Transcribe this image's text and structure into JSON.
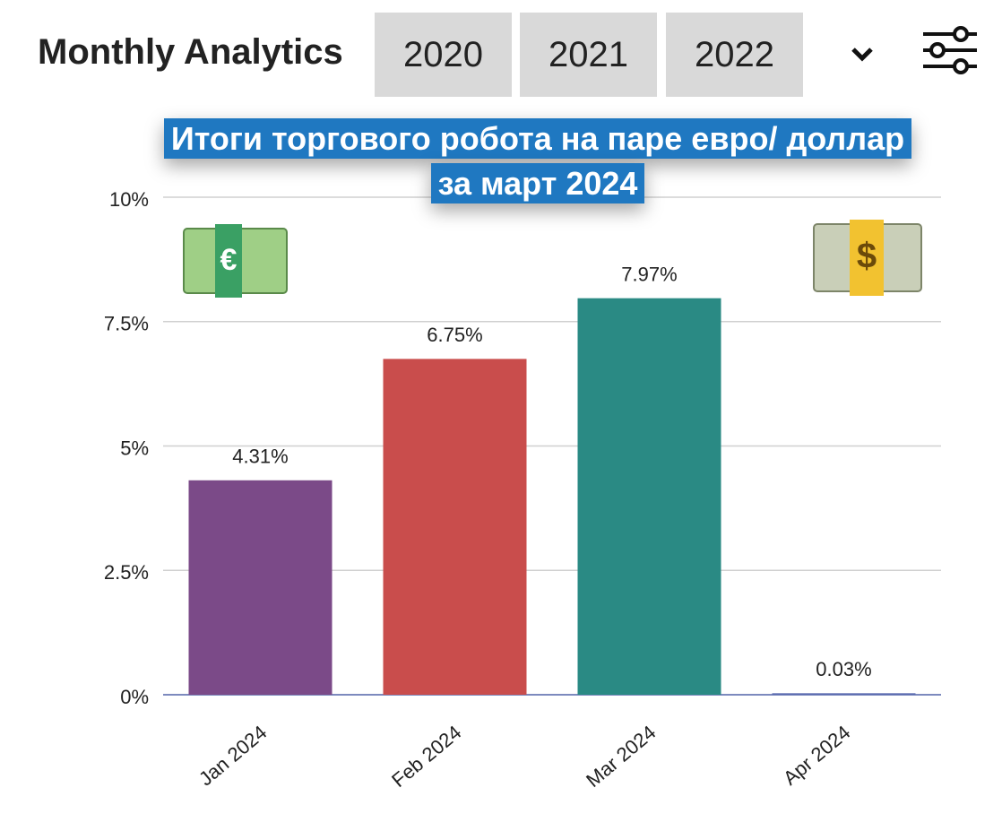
{
  "header": {
    "title": "Monthly Analytics",
    "tabs": [
      "2020",
      "2021",
      "2022"
    ]
  },
  "chart_data": {
    "type": "bar",
    "title": "Итоги торгового робота на паре евро/ доллар за март 2024",
    "categories": [
      "Jan 2024",
      "Feb 2024",
      "Mar 2024",
      "Apr 2024"
    ],
    "values": [
      4.31,
      6.75,
      7.97,
      0.03
    ],
    "value_labels": [
      "4.31%",
      "6.75%",
      "7.97%",
      "0.03%"
    ],
    "colors": [
      "#7b4a88",
      "#c94d4c",
      "#2a8a84",
      "#5a6bb0"
    ],
    "ylim": [
      0,
      10
    ],
    "yticks": [
      {
        "value": 0,
        "label": "0%"
      },
      {
        "value": 2.5,
        "label": "2.5%"
      },
      {
        "value": 5,
        "label": "5%"
      },
      {
        "value": 7.5,
        "label": "7.5%"
      },
      {
        "value": 10,
        "label": "10%"
      }
    ],
    "grid": true
  }
}
